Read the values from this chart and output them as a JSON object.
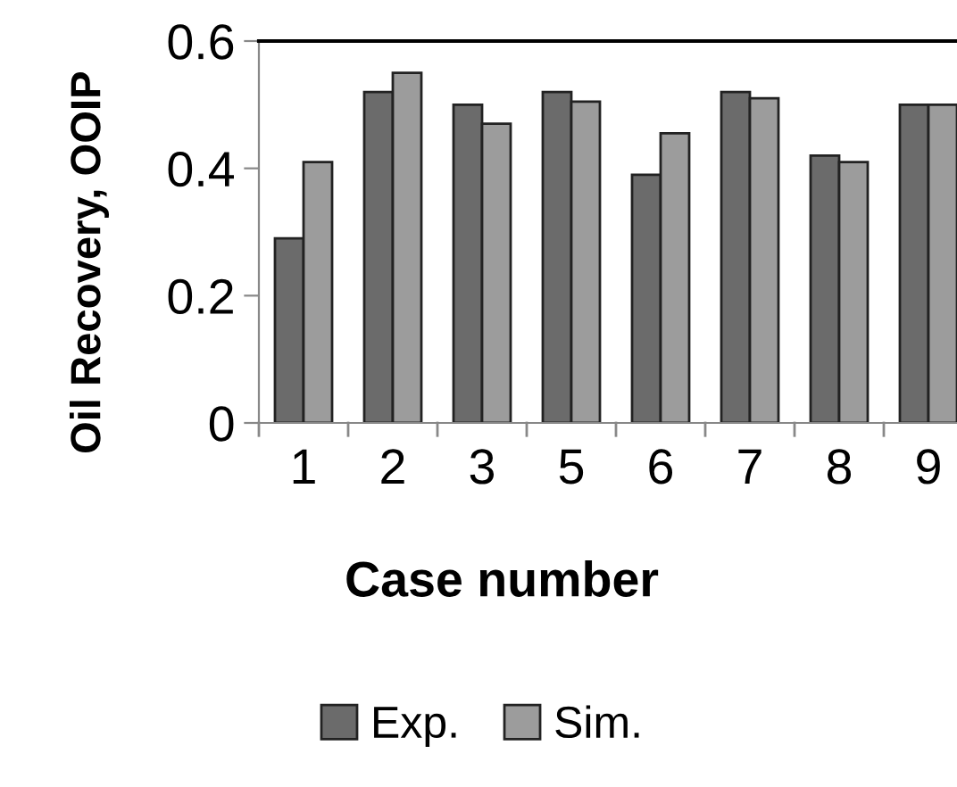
{
  "chart_data": {
    "type": "bar",
    "xlabel": "Case number",
    "ylabel": "Oil Recovery, OOIP",
    "categories": [
      "1",
      "2",
      "3",
      "5",
      "6",
      "7",
      "8",
      "9"
    ],
    "series": [
      {
        "name": "Exp.",
        "color": "#6b6b6b",
        "values": [
          0.29,
          0.52,
          0.5,
          0.52,
          0.39,
          0.52,
          0.42,
          0.5
        ]
      },
      {
        "name": "Sim.",
        "color": "#9c9c9c",
        "values": [
          0.41,
          0.55,
          0.47,
          0.505,
          0.455,
          0.51,
          0.41,
          0.5
        ]
      }
    ],
    "ylim": [
      0,
      0.6
    ],
    "yticks": [
      {
        "value": 0,
        "label": "0"
      },
      0.2,
      0.4,
      0.6
    ],
    "grid": false,
    "legend": "bottom"
  }
}
